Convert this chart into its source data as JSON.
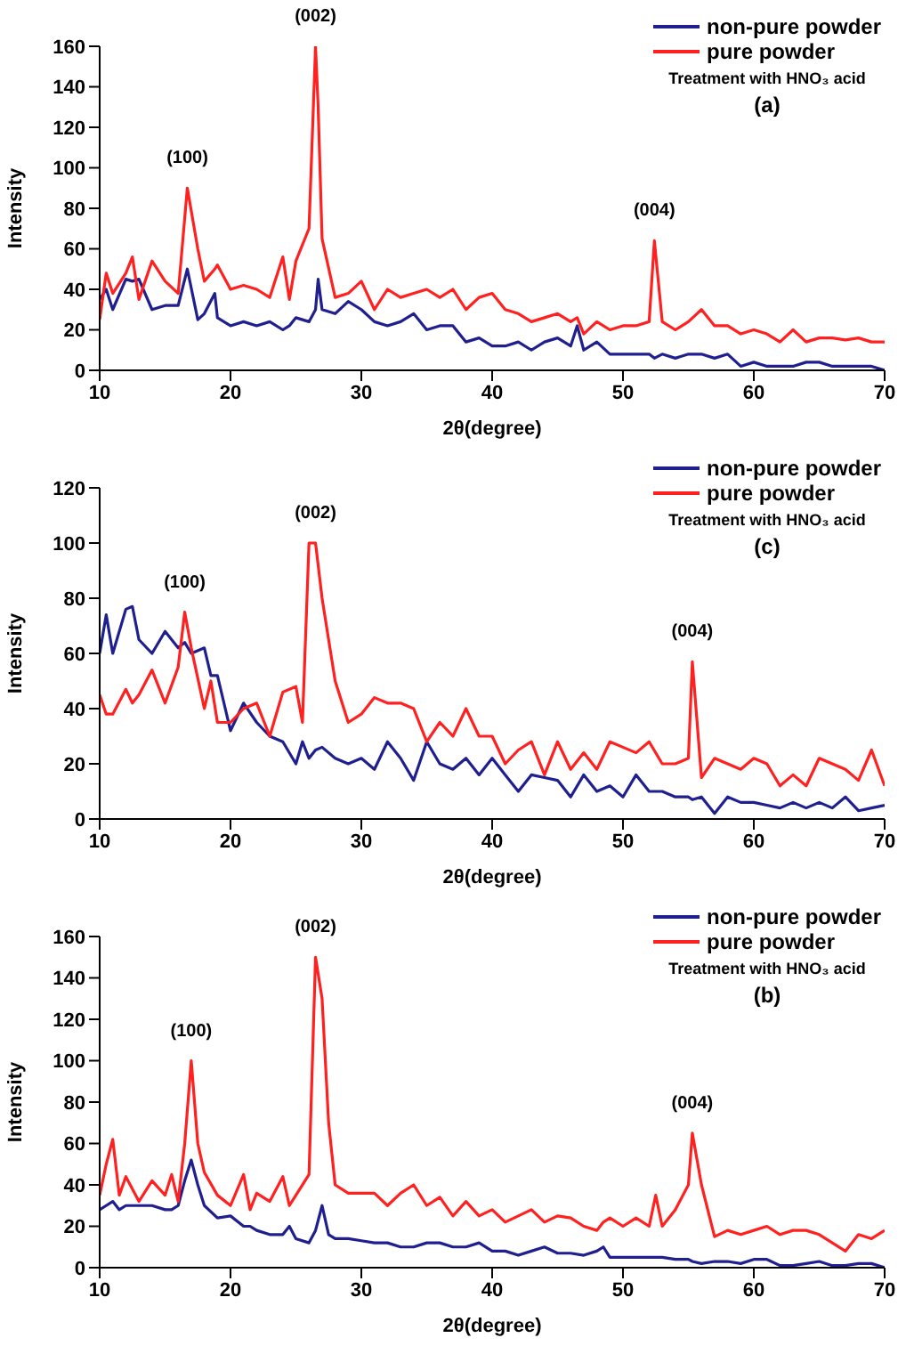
{
  "chart_data": [
    {
      "type": "line",
      "xlabel": "2θ(degree)",
      "ylabel": "Intensity",
      "xlim": [
        10,
        70
      ],
      "xticks": [
        10,
        20,
        30,
        40,
        50,
        60,
        70
      ],
      "ylim": [
        0,
        160
      ],
      "yticks": [
        0,
        20,
        40,
        60,
        80,
        100,
        120,
        140,
        160
      ],
      "grid": false,
      "legend": "top right",
      "marker": "none",
      "line_style": "solid",
      "x": [
        10,
        10.5,
        11,
        12,
        12.5,
        13,
        14,
        15,
        16,
        16.7,
        17.5,
        18,
        18.8,
        19,
        20,
        21,
        22,
        23,
        24,
        24.5,
        25,
        26,
        26.5,
        26.7,
        27,
        28,
        29,
        30,
        31,
        32,
        33,
        34,
        35,
        36,
        37,
        38,
        39,
        40,
        41,
        42,
        43,
        44,
        45,
        46,
        46.5,
        47,
        48,
        49,
        50,
        51,
        52,
        52.4,
        53,
        54,
        55,
        56,
        57,
        58,
        59,
        60,
        61,
        62,
        63,
        64,
        65,
        66,
        67,
        68,
        69,
        70
      ],
      "series": [
        {
          "name": "non-pure powder",
          "color": "#1f1f8f",
          "values": [
            35,
            40,
            30,
            45,
            44,
            45,
            30,
            32,
            32,
            50,
            25,
            28,
            38,
            26,
            22,
            24,
            22,
            24,
            20,
            22,
            26,
            24,
            30,
            45,
            30,
            28,
            34,
            30,
            24,
            22,
            24,
            28,
            20,
            22,
            22,
            14,
            16,
            12,
            12,
            14,
            10,
            14,
            16,
            12,
            22,
            10,
            14,
            8,
            8,
            8,
            8,
            6,
            8,
            6,
            8,
            8,
            6,
            8,
            2,
            4,
            2,
            2,
            2,
            4,
            4,
            2,
            2,
            2,
            2,
            0
          ]
        },
        {
          "name": "pure powder",
          "color": "#ff2020",
          "values": [
            25,
            48,
            38,
            48,
            56,
            35,
            54,
            44,
            38,
            90,
            60,
            44,
            50,
            52,
            40,
            42,
            40,
            36,
            56,
            35,
            54,
            70,
            160,
            130,
            65,
            36,
            38,
            44,
            30,
            40,
            36,
            38,
            40,
            36,
            40,
            30,
            36,
            38,
            30,
            28,
            24,
            26,
            28,
            24,
            26,
            18,
            24,
            20,
            22,
            22,
            24,
            64,
            24,
            20,
            24,
            30,
            22,
            22,
            18,
            20,
            18,
            14,
            20,
            14,
            16,
            16,
            15,
            16,
            14,
            14
          ]
        }
      ],
      "annotations": [
        {
          "text": "(100)",
          "x": 16.7,
          "y": 90
        },
        {
          "text": "(002)",
          "x": 26.5,
          "y": 160
        },
        {
          "text": "(004)",
          "x": 52.4,
          "y": 64
        },
        "Treatment with HNO₃ acid",
        "(a)"
      ]
    },
    {
      "type": "line",
      "xlabel": "2θ(degree)",
      "ylabel": "Intensity",
      "xlim": [
        10,
        70
      ],
      "xticks": [
        10,
        20,
        30,
        40,
        50,
        60,
        70
      ],
      "ylim": [
        0,
        120
      ],
      "yticks": [
        0,
        20,
        40,
        60,
        80,
        100,
        120
      ],
      "grid": false,
      "legend": "top right",
      "marker": "none",
      "line_style": "solid",
      "x": [
        10,
        10.5,
        11,
        12,
        12.5,
        13,
        14,
        15,
        16,
        16.5,
        17,
        18,
        18.5,
        19,
        20,
        21,
        22,
        23,
        24,
        25,
        25.5,
        26,
        26.5,
        27,
        28,
        29,
        30,
        31,
        32,
        33,
        34,
        35,
        36,
        37,
        38,
        39,
        40,
        41,
        42,
        43,
        44,
        45,
        46,
        47,
        48,
        49,
        50,
        51,
        52,
        53,
        54,
        55,
        55.3,
        56,
        57,
        58,
        59,
        60,
        61,
        62,
        63,
        64,
        65,
        66,
        67,
        68,
        69,
        70
      ],
      "series": [
        {
          "name": "non-pure powder",
          "color": "#1f1f8f",
          "values": [
            60,
            74,
            60,
            76,
            77,
            65,
            60,
            68,
            62,
            64,
            60,
            62,
            52,
            52,
            32,
            42,
            35,
            30,
            28,
            20,
            28,
            22,
            25,
            26,
            22,
            20,
            22,
            18,
            28,
            22,
            14,
            28,
            20,
            18,
            22,
            16,
            22,
            16,
            10,
            16,
            15,
            14,
            8,
            16,
            10,
            12,
            8,
            16,
            10,
            10,
            8,
            8,
            7,
            8,
            2,
            8,
            6,
            6,
            5,
            4,
            6,
            4,
            6,
            4,
            8,
            3,
            4,
            5
          ]
        },
        {
          "name": "pure powder",
          "color": "#ff2020",
          "values": [
            45,
            38,
            38,
            47,
            42,
            45,
            54,
            42,
            55,
            75,
            62,
            40,
            50,
            35,
            35,
            40,
            42,
            30,
            46,
            48,
            35,
            100,
            100,
            80,
            50,
            35,
            38,
            44,
            42,
            42,
            40,
            28,
            35,
            30,
            40,
            30,
            30,
            20,
            25,
            28,
            16,
            28,
            18,
            24,
            18,
            28,
            26,
            24,
            28,
            20,
            20,
            22,
            57,
            15,
            22,
            20,
            18,
            22,
            20,
            12,
            16,
            12,
            22,
            20,
            18,
            14,
            25,
            12
          ]
        }
      ],
      "annotations": [
        {
          "text": "(100)",
          "x": 16.5,
          "y": 75
        },
        {
          "text": "(002)",
          "x": 26.5,
          "y": 100
        },
        {
          "text": "(004)",
          "x": 55.3,
          "y": 57
        },
        "Treatment with HNO₃ acid",
        "(c)"
      ]
    },
    {
      "type": "line",
      "xlabel": "2θ(degree)",
      "ylabel": "Intensity",
      "xlim": [
        10,
        70
      ],
      "xticks": [
        10,
        20,
        30,
        40,
        50,
        60,
        70
      ],
      "ylim": [
        0,
        160
      ],
      "yticks": [
        0,
        20,
        40,
        60,
        80,
        100,
        120,
        140,
        160
      ],
      "grid": false,
      "legend": "top right",
      "marker": "none",
      "line_style": "solid",
      "x": [
        10,
        10.5,
        11,
        11.5,
        12,
        13,
        14,
        15,
        15.5,
        16,
        16.5,
        17,
        17.5,
        18,
        19,
        20,
        21,
        21.5,
        22,
        23,
        24,
        24.5,
        25,
        26,
        26.5,
        27,
        27.5,
        28,
        29,
        30,
        31,
        32,
        33,
        34,
        35,
        36,
        37,
        38,
        39,
        40,
        41,
        42,
        43,
        44,
        45,
        46,
        47,
        48,
        48.5,
        49,
        50,
        51,
        52,
        52.5,
        53,
        54,
        55,
        55.3,
        56,
        57,
        58,
        59,
        60,
        61,
        62,
        63,
        64,
        65,
        66,
        67,
        68,
        69,
        70
      ],
      "series": [
        {
          "name": "non-pure powder",
          "color": "#1f1f8f",
          "values": [
            28,
            30,
            32,
            28,
            30,
            30,
            30,
            28,
            28,
            30,
            42,
            52,
            40,
            30,
            24,
            25,
            20,
            20,
            18,
            16,
            16,
            20,
            14,
            12,
            18,
            30,
            16,
            14,
            14,
            13,
            12,
            12,
            10,
            10,
            12,
            12,
            10,
            10,
            12,
            8,
            8,
            6,
            8,
            10,
            7,
            7,
            6,
            8,
            10,
            5,
            5,
            5,
            5,
            5,
            5,
            4,
            4,
            3,
            2,
            3,
            3,
            2,
            4,
            4,
            1,
            1,
            2,
            3,
            1,
            1,
            2,
            2,
            0
          ]
        },
        {
          "name": "pure powder",
          "color": "#ff2020",
          "values": [
            35,
            50,
            62,
            35,
            44,
            32,
            42,
            35,
            45,
            32,
            60,
            100,
            60,
            46,
            35,
            30,
            45,
            28,
            36,
            32,
            44,
            30,
            35,
            45,
            150,
            130,
            70,
            40,
            36,
            36,
            36,
            30,
            36,
            40,
            30,
            34,
            25,
            32,
            25,
            28,
            22,
            25,
            28,
            22,
            25,
            24,
            20,
            18,
            22,
            24,
            20,
            24,
            20,
            35,
            20,
            28,
            40,
            65,
            40,
            15,
            18,
            16,
            18,
            20,
            16,
            18,
            18,
            16,
            12,
            8,
            16,
            14,
            18
          ]
        }
      ],
      "annotations": [
        {
          "text": "(100)",
          "x": 17,
          "y": 100
        },
        {
          "text": "(002)",
          "x": 26.5,
          "y": 150
        },
        {
          "text": "(004)",
          "x": 55.3,
          "y": 65
        },
        "Treatment with HNO₃ acid",
        "(b)"
      ]
    }
  ]
}
